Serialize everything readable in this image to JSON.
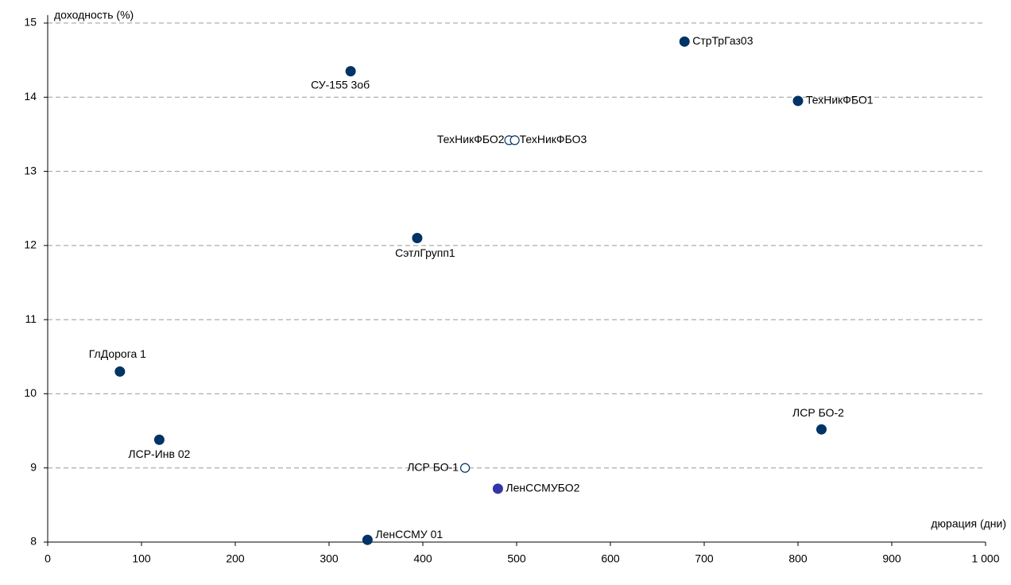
{
  "chart_data": {
    "type": "scatter",
    "x_label": "дюрация (дни)",
    "y_label": "доходность (%)",
    "xlim": [
      0,
      1000
    ],
    "ylim": [
      8,
      15
    ],
    "xticks": [
      0,
      100,
      200,
      300,
      400,
      500,
      600,
      700,
      800,
      900,
      {
        "value": 1000,
        "label": "1 000"
      }
    ],
    "yticks": [
      8,
      9,
      10,
      11,
      12,
      13,
      14,
      15
    ],
    "grid": true,
    "points": [
      {
        "label": "СтрТрГаз03",
        "x": 679,
        "y": 14.75,
        "color": "#003366",
        "filled": true
      },
      {
        "label": "ТехНикФБО1",
        "x": 800,
        "y": 13.95,
        "color": "#003366",
        "filled": true
      },
      {
        "label": "СУ-155 3об",
        "x": 323,
        "y": 14.35,
        "color": "#003366",
        "filled": true
      },
      {
        "label": "ТехНикФБО2",
        "x": 492,
        "y": 13.42,
        "color": "#003366",
        "filled": false
      },
      {
        "label": "ТехНикФБО3",
        "x": 498,
        "y": 13.42,
        "color": "#003366",
        "filled": false
      },
      {
        "label": "СэтлГрупп1",
        "x": 394,
        "y": 12.1,
        "color": "#003366",
        "filled": true
      },
      {
        "label": "ГлДорога 1",
        "x": 77,
        "y": 10.3,
        "color": "#003366",
        "filled": true
      },
      {
        "label": "ЛСР-Инв 02",
        "x": 119,
        "y": 9.38,
        "color": "#003366",
        "filled": true
      },
      {
        "label": "ЛСР БО-2",
        "x": 825,
        "y": 9.52,
        "color": "#003366",
        "filled": true
      },
      {
        "label": "ЛСР БО-1",
        "x": 445,
        "y": 9.0,
        "color": "#003366",
        "filled": false
      },
      {
        "label": "ЛенССМУБО2",
        "x": 480,
        "y": 8.72,
        "color": "#3333aa",
        "filled": true
      },
      {
        "label": "ЛенССМУ 01",
        "x": 341,
        "y": 8.03,
        "color": "#003366",
        "filled": true
      }
    ]
  }
}
